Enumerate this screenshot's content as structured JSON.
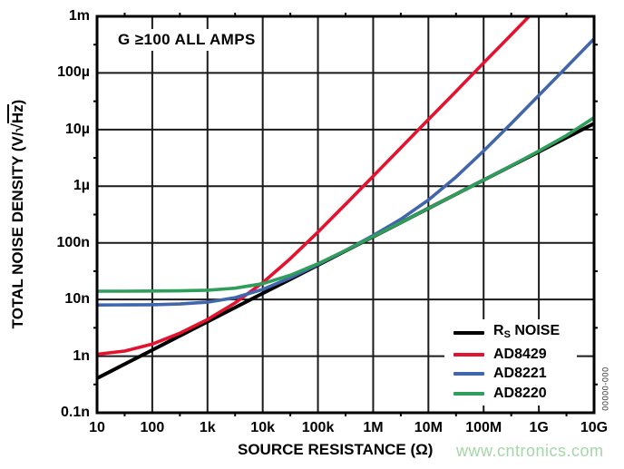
{
  "figure": {
    "watermark": "www.cntronics.com",
    "figure_code": "00000-000",
    "colors": {
      "rs_noise": "#000000",
      "ad8429": "#e4122f",
      "ad8221": "#4166ac",
      "ad8220": "#2f9e5b",
      "grid": "#1a1a1a",
      "border": "#000000",
      "watermark": "#a5d6a7",
      "background": "#ffffff"
    }
  },
  "chart_data": {
    "type": "line",
    "title": "",
    "annotation": "G ≥100 ALL AMPS",
    "xlabel": "SOURCE RESISTANCE (Ω)",
    "ylabel": "TOTAL NOISE DENSITY (V/√Hz)",
    "ylabel_parts": {
      "prefix": "TOTAL NOISE DENSITY (V/√",
      "overline": "Hz",
      "suffix": ")"
    },
    "x_scale": "log",
    "y_scale": "log",
    "xlim_ohm": [
      10,
      10000000000
    ],
    "ylim_v_per_rtHz": [
      1e-10,
      0.001
    ],
    "x_tick_labels": [
      "10",
      "100",
      "1k",
      "10k",
      "100k",
      "1M",
      "10M",
      "100M",
      "1G",
      "10G"
    ],
    "x_tick_log10_ohm": [
      1,
      2,
      3,
      4,
      5,
      6,
      7,
      8,
      9,
      10
    ],
    "y_tick_labels": [
      "1m",
      "100µ",
      "10µ",
      "1µ",
      "100n",
      "10n",
      "1n",
      "0.1n"
    ],
    "y_tick_log10_nV": [
      6,
      5,
      4,
      3,
      2,
      1,
      0,
      -1
    ],
    "grid": true,
    "legend_position": "lower right",
    "units_note": "series points are [log10(R in Ω), noise in nV/√Hz]",
    "series": [
      {
        "name": "RS NOISE",
        "legend_parts": {
          "base": "R",
          "sub": "S",
          "rest": " NOISE"
        },
        "color": "#000000",
        "stroke_width": 4,
        "points_log10R_nV": [
          [
            1,
            0.406
          ],
          [
            1.5,
            0.722
          ],
          [
            2,
            1.28
          ],
          [
            2.5,
            2.28
          ],
          [
            3,
            4.06
          ],
          [
            3.5,
            7.22
          ],
          [
            4,
            12.8
          ],
          [
            4.5,
            22.8
          ],
          [
            5,
            40.6
          ],
          [
            5.5,
            72.2
          ],
          [
            6,
            128
          ],
          [
            6.5,
            228
          ],
          [
            7,
            406
          ],
          [
            7.5,
            722
          ],
          [
            8,
            1283
          ],
          [
            8.5,
            2282
          ],
          [
            9,
            4057
          ],
          [
            9.5,
            7215
          ],
          [
            10,
            12830
          ]
        ]
      },
      {
        "name": "AD8429",
        "color": "#e4122f",
        "stroke_width": 3.6,
        "points_log10R_nV": [
          [
            1,
            1.08
          ],
          [
            1.5,
            1.23
          ],
          [
            2,
            1.63
          ],
          [
            2.5,
            2.54
          ],
          [
            3,
            4.44
          ],
          [
            3.5,
            8.69
          ],
          [
            4,
            19.8
          ],
          [
            4.5,
            52.6
          ],
          [
            5,
            155
          ],
          [
            5.5,
            480
          ],
          [
            6,
            1505
          ],
          [
            6.5,
            4749
          ],
          [
            7,
            15010
          ],
          [
            7.5,
            47430
          ],
          [
            8,
            150000
          ],
          [
            8.5,
            474300
          ],
          [
            9,
            1500000
          ]
        ]
      },
      {
        "name": "AD8221",
        "color": "#4166ac",
        "stroke_width": 3.6,
        "points_log10R_nV": [
          [
            1,
            8.01
          ],
          [
            1.5,
            8.03
          ],
          [
            2,
            8.1
          ],
          [
            2.5,
            8.32
          ],
          [
            3,
            8.97
          ],
          [
            3.5,
            10.8
          ],
          [
            4,
            15.1
          ],
          [
            4.5,
            24.2
          ],
          [
            5,
            41.6
          ],
          [
            5.5,
            73.7
          ],
          [
            6,
            135
          ],
          [
            6.5,
            261
          ],
          [
            7,
            570
          ],
          [
            7.5,
            1456
          ],
          [
            8,
            4201
          ],
          [
            8.5,
            12850
          ],
          [
            9,
            40200
          ],
          [
            9.5,
            126700
          ],
          [
            10,
            400200
          ]
        ]
      },
      {
        "name": "AD8220",
        "color": "#2f9e5b",
        "stroke_width": 3.6,
        "points_log10R_nV": [
          [
            1,
            14.0
          ],
          [
            1.5,
            14.0
          ],
          [
            2,
            14.1
          ],
          [
            2.5,
            14.2
          ],
          [
            3,
            14.6
          ],
          [
            3.5,
            15.8
          ],
          [
            4,
            19.0
          ],
          [
            4.5,
            26.8
          ],
          [
            5,
            42.9
          ],
          [
            5.5,
            73.5
          ],
          [
            6,
            129
          ],
          [
            6.5,
            229
          ],
          [
            7,
            406
          ],
          [
            7.5,
            722
          ],
          [
            8,
            1287
          ],
          [
            8.5,
            2303
          ],
          [
            9,
            4179
          ],
          [
            9.5,
            7877
          ],
          [
            10,
            16270
          ]
        ]
      }
    ]
  }
}
